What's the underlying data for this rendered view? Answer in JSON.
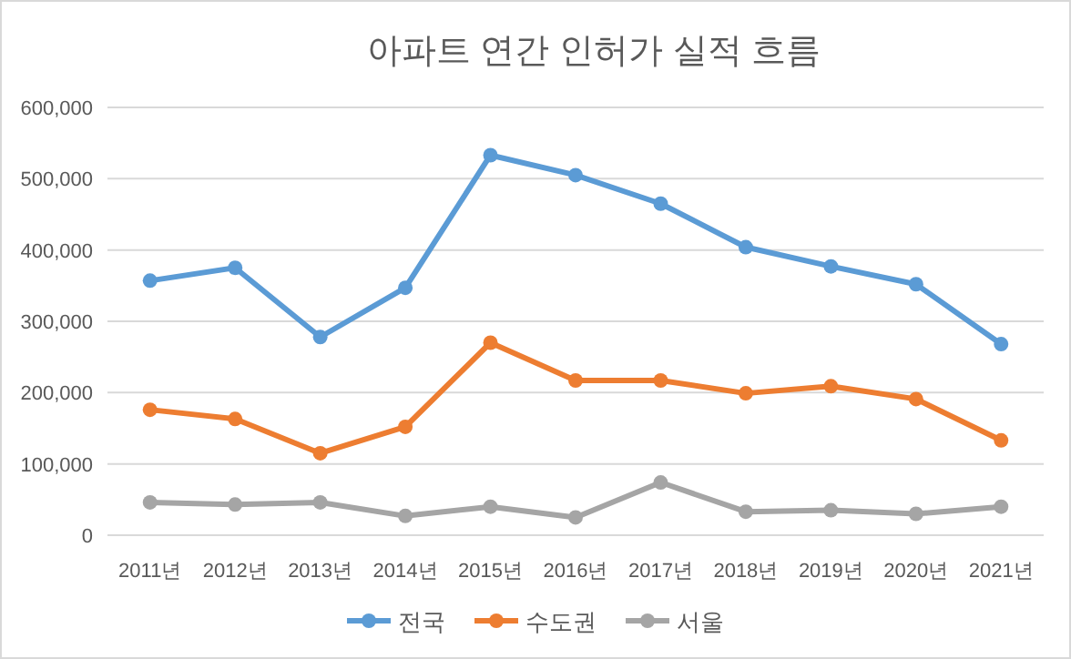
{
  "chart_data": {
    "type": "line",
    "title": "아파트 연간 인허가 실적 흐름",
    "categories": [
      "2011년",
      "2012년",
      "2013년",
      "2014년",
      "2015년",
      "2016년",
      "2017년",
      "2018년",
      "2019년",
      "2020년",
      "2021년"
    ],
    "series": [
      {
        "name": "전국",
        "color": "#5b9bd5",
        "values": [
          357000,
          375000,
          278000,
          347000,
          533000,
          505000,
          465000,
          404000,
          377000,
          352000,
          268000
        ]
      },
      {
        "name": "수도권",
        "color": "#ed7d31",
        "values": [
          176000,
          163000,
          115000,
          152000,
          270000,
          217000,
          217000,
          199000,
          209000,
          191000,
          133000
        ]
      },
      {
        "name": "서울",
        "color": "#a5a5a5",
        "values": [
          46000,
          43000,
          46000,
          27000,
          40000,
          25000,
          74000,
          33000,
          35000,
          30000,
          40000
        ]
      }
    ],
    "ylim": [
      0,
      600000
    ],
    "yticks": [
      {
        "value": 0,
        "label": "0"
      },
      {
        "value": 100000,
        "label": "100,000"
      },
      {
        "value": 200000,
        "label": "200,000"
      },
      {
        "value": 300000,
        "label": "300,000"
      },
      {
        "value": 400000,
        "label": "400,000"
      },
      {
        "value": 500000,
        "label": "500,000"
      },
      {
        "value": 600000,
        "label": "600,000"
      }
    ],
    "grid": "y",
    "legend": "bottom",
    "marker": "circle",
    "line_style": "solid"
  }
}
